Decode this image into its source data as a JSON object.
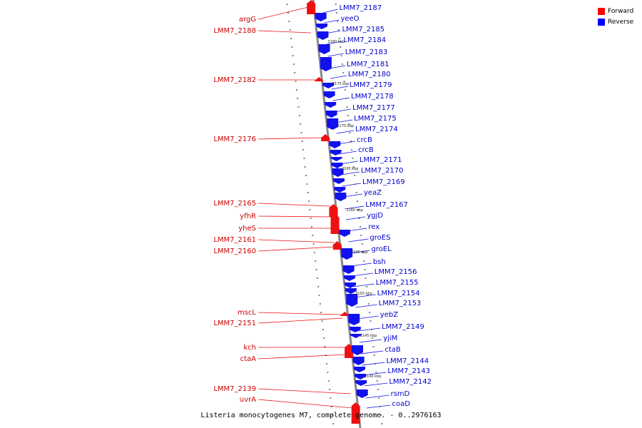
{
  "legend": {
    "forward": {
      "label": "Forward",
      "color": "#ff0000"
    },
    "reverse": {
      "label": "Reverse",
      "color": "#0000ff"
    }
  },
  "caption": "Listeria monocytogenes M7, complete genome. - 0..2976163",
  "colors": {
    "forward": "#ee1111",
    "reverse": "#1111ee",
    "forward_text": "#cc0000",
    "reverse_text": "#0000cc",
    "backbone": "#888888"
  },
  "forward_labels": [
    "argG",
    "LMM7_2188",
    "LMM7_2182",
    "LMM7_2176",
    "LMM7_2165",
    "yfhR",
    "yheS",
    "LMM7_2161",
    "LMM7_2160",
    "mscL",
    "LMM7_2151",
    "kch",
    "ctaA",
    "LMM7_2139",
    "uvrA"
  ],
  "reverse_labels": [
    "LMM7_2187",
    "yeeO",
    "LMM7_2185",
    "LMM7_2184",
    "LMM7_2183",
    "LMM7_2181",
    "LMM7_2180",
    "LMM7_2179",
    "LMM7_2178",
    "LMM7_2177",
    "LMM7_2175",
    "LMM7_2174",
    "crcB",
    "crcB",
    "LMM7_2171",
    "LMM7_2170",
    "LMM7_2169",
    "yeaZ",
    "LMM7_2167",
    "ygjD",
    "rex",
    "groES",
    "groEL",
    "bsh",
    "LMM7_2156",
    "LMM7_2155",
    "LMM7_2154",
    "LMM7_2153",
    "yebZ",
    "LMM7_2149",
    "yjiM",
    "ctaB",
    "LMM7_2144",
    "LMM7_2143",
    "LMM7_2142",
    "rsmD",
    "coaD"
  ],
  "ticks": [
    "2180 kbp",
    "2175 kbp",
    "2170 kbp",
    "2165 kbp",
    "2160 kbp",
    "2155 kbp",
    "2150 kbp",
    "2145 kbp",
    "2140 kbp"
  ]
}
